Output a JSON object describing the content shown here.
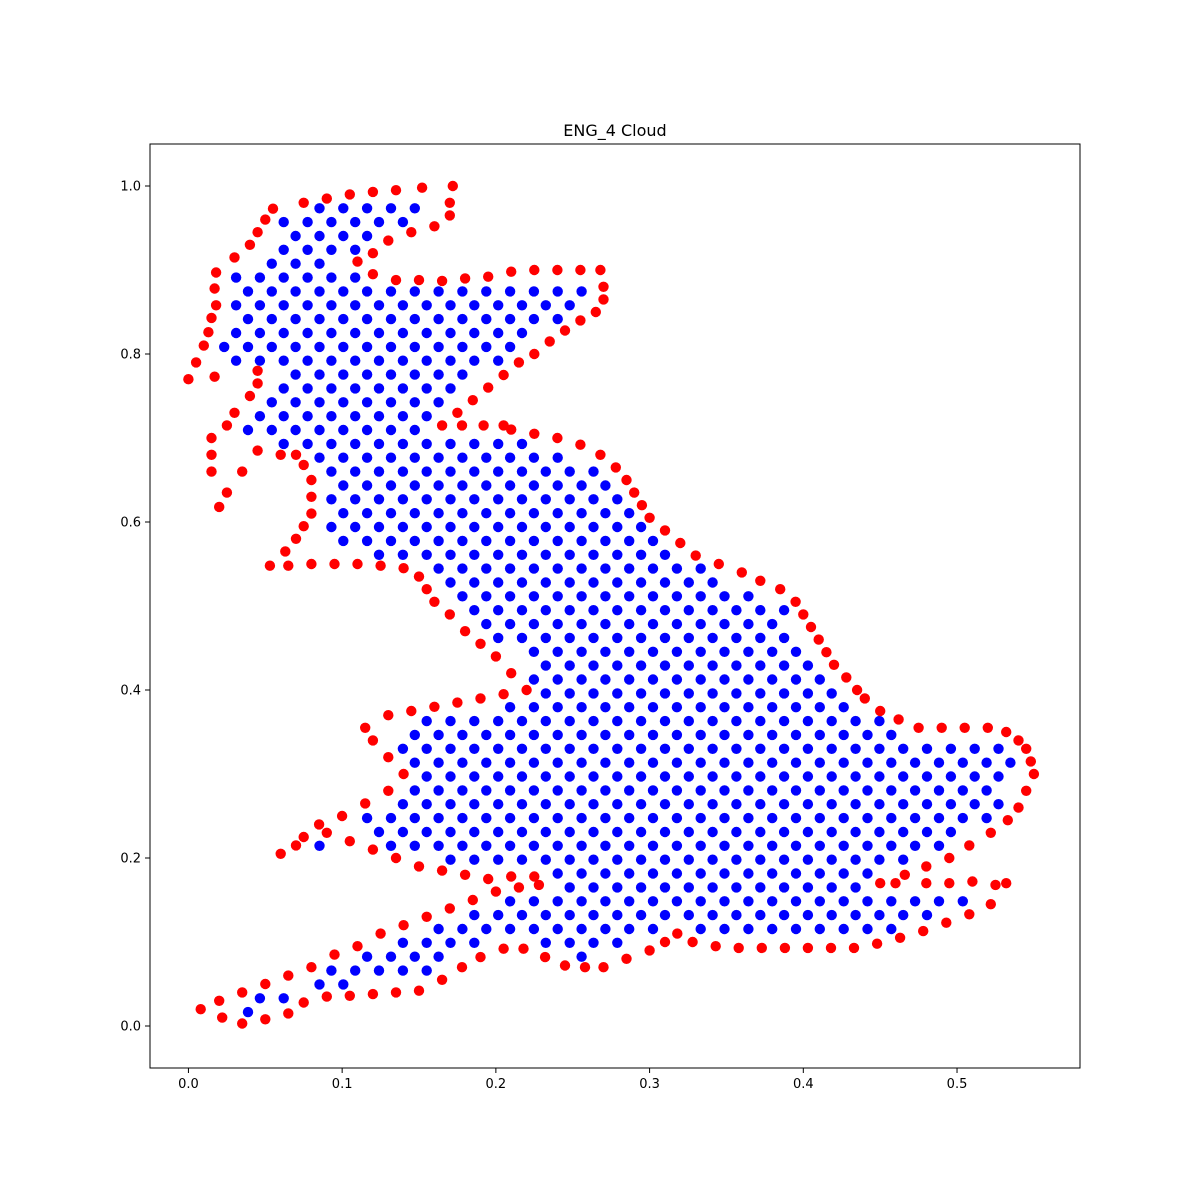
{
  "chart_data": {
    "type": "scatter",
    "title": "ENG_4 Cloud",
    "xlabel": "",
    "ylabel": "",
    "xlim": [
      -0.025,
      0.58
    ],
    "ylim": [
      -0.05,
      1.05
    ],
    "x_ticks": [
      0.0,
      0.1,
      0.2,
      0.3,
      0.4,
      0.5
    ],
    "x_tick_labels": [
      "0.0",
      "0.1",
      "0.2",
      "0.3",
      "0.4",
      "0.5"
    ],
    "y_ticks": [
      0.0,
      0.2,
      0.4,
      0.6,
      0.8,
      1.0
    ],
    "y_tick_labels": [
      "0.0",
      "0.2",
      "0.4",
      "0.6",
      "0.8",
      "1.0"
    ],
    "grid": false,
    "legend": "none",
    "colors": {
      "interior": "#0000ff",
      "boundary": "#ff0000"
    },
    "series": [
      {
        "color": "#ff0000",
        "points": [
          [
            0.0,
            0.77
          ],
          [
            0.005,
            0.79
          ],
          [
            0.01,
            0.81
          ],
          [
            0.013,
            0.826
          ],
          [
            0.015,
            0.843
          ],
          [
            0.018,
            0.858
          ],
          [
            0.018,
            0.897
          ],
          [
            0.017,
            0.878
          ],
          [
            0.017,
            0.773
          ],
          [
            0.03,
            0.915
          ],
          [
            0.04,
            0.93
          ],
          [
            0.045,
            0.945
          ],
          [
            0.05,
            0.96
          ],
          [
            0.055,
            0.973
          ],
          [
            0.075,
            0.98
          ],
          [
            0.09,
            0.985
          ],
          [
            0.105,
            0.99
          ],
          [
            0.12,
            0.993
          ],
          [
            0.135,
            0.995
          ],
          [
            0.152,
            0.998
          ],
          [
            0.172,
            1.0
          ],
          [
            0.17,
            0.98
          ],
          [
            0.17,
            0.965
          ],
          [
            0.16,
            0.952
          ],
          [
            0.145,
            0.945
          ],
          [
            0.13,
            0.935
          ],
          [
            0.12,
            0.92
          ],
          [
            0.11,
            0.91
          ],
          [
            0.12,
            0.895
          ],
          [
            0.135,
            0.888
          ],
          [
            0.15,
            0.888
          ],
          [
            0.165,
            0.887
          ],
          [
            0.18,
            0.89
          ],
          [
            0.195,
            0.892
          ],
          [
            0.21,
            0.898
          ],
          [
            0.225,
            0.9
          ],
          [
            0.24,
            0.9
          ],
          [
            0.255,
            0.9
          ],
          [
            0.268,
            0.9
          ],
          [
            0.27,
            0.88
          ],
          [
            0.27,
            0.865
          ],
          [
            0.265,
            0.85
          ],
          [
            0.255,
            0.84
          ],
          [
            0.245,
            0.828
          ],
          [
            0.235,
            0.815
          ],
          [
            0.225,
            0.8
          ],
          [
            0.215,
            0.79
          ],
          [
            0.205,
            0.775
          ],
          [
            0.195,
            0.76
          ],
          [
            0.185,
            0.745
          ],
          [
            0.175,
            0.73
          ],
          [
            0.165,
            0.715
          ],
          [
            0.178,
            0.715
          ],
          [
            0.192,
            0.715
          ],
          [
            0.205,
            0.715
          ],
          [
            0.21,
            0.71
          ],
          [
            0.225,
            0.705
          ],
          [
            0.24,
            0.7
          ],
          [
            0.255,
            0.692
          ],
          [
            0.268,
            0.68
          ],
          [
            0.278,
            0.665
          ],
          [
            0.285,
            0.65
          ],
          [
            0.29,
            0.635
          ],
          [
            0.295,
            0.62
          ],
          [
            0.3,
            0.605
          ],
          [
            0.31,
            0.59
          ],
          [
            0.32,
            0.575
          ],
          [
            0.33,
            0.56
          ],
          [
            0.345,
            0.55
          ],
          [
            0.36,
            0.54
          ],
          [
            0.372,
            0.53
          ],
          [
            0.385,
            0.52
          ],
          [
            0.395,
            0.505
          ],
          [
            0.4,
            0.49
          ],
          [
            0.405,
            0.475
          ],
          [
            0.41,
            0.46
          ],
          [
            0.415,
            0.445
          ],
          [
            0.42,
            0.43
          ],
          [
            0.428,
            0.415
          ],
          [
            0.435,
            0.4
          ],
          [
            0.44,
            0.39
          ],
          [
            0.45,
            0.375
          ],
          [
            0.462,
            0.365
          ],
          [
            0.475,
            0.355
          ],
          [
            0.49,
            0.355
          ],
          [
            0.505,
            0.355
          ],
          [
            0.52,
            0.355
          ],
          [
            0.532,
            0.35
          ],
          [
            0.54,
            0.34
          ],
          [
            0.545,
            0.33
          ],
          [
            0.548,
            0.315
          ],
          [
            0.55,
            0.3
          ],
          [
            0.545,
            0.28
          ],
          [
            0.54,
            0.26
          ],
          [
            0.533,
            0.245
          ],
          [
            0.522,
            0.23
          ],
          [
            0.508,
            0.215
          ],
          [
            0.495,
            0.2
          ],
          [
            0.48,
            0.19
          ],
          [
            0.466,
            0.18
          ],
          [
            0.45,
            0.17
          ],
          [
            0.46,
            0.17
          ],
          [
            0.48,
            0.17
          ],
          [
            0.495,
            0.17
          ],
          [
            0.51,
            0.172
          ],
          [
            0.525,
            0.168
          ],
          [
            0.532,
            0.17
          ],
          [
            0.522,
            0.145
          ],
          [
            0.508,
            0.133
          ],
          [
            0.493,
            0.123
          ],
          [
            0.478,
            0.113
          ],
          [
            0.463,
            0.105
          ],
          [
            0.448,
            0.098
          ],
          [
            0.433,
            0.093
          ],
          [
            0.418,
            0.093
          ],
          [
            0.403,
            0.093
          ],
          [
            0.388,
            0.093
          ],
          [
            0.373,
            0.093
          ],
          [
            0.358,
            0.093
          ],
          [
            0.343,
            0.095
          ],
          [
            0.328,
            0.1
          ],
          [
            0.318,
            0.11
          ],
          [
            0.31,
            0.1
          ],
          [
            0.3,
            0.09
          ],
          [
            0.285,
            0.08
          ],
          [
            0.27,
            0.07
          ],
          [
            0.258,
            0.07
          ],
          [
            0.245,
            0.072
          ],
          [
            0.232,
            0.082
          ],
          [
            0.218,
            0.092
          ],
          [
            0.205,
            0.092
          ],
          [
            0.19,
            0.082
          ],
          [
            0.178,
            0.07
          ],
          [
            0.165,
            0.055
          ],
          [
            0.15,
            0.042
          ],
          [
            0.135,
            0.04
          ],
          [
            0.12,
            0.038
          ],
          [
            0.105,
            0.036
          ],
          [
            0.09,
            0.035
          ],
          [
            0.075,
            0.028
          ],
          [
            0.065,
            0.015
          ],
          [
            0.05,
            0.008
          ],
          [
            0.035,
            0.003
          ],
          [
            0.022,
            0.01
          ],
          [
            0.008,
            0.02
          ],
          [
            0.02,
            0.03
          ],
          [
            0.035,
            0.04
          ],
          [
            0.05,
            0.05
          ],
          [
            0.065,
            0.06
          ],
          [
            0.08,
            0.07
          ],
          [
            0.095,
            0.085
          ],
          [
            0.11,
            0.095
          ],
          [
            0.125,
            0.11
          ],
          [
            0.14,
            0.12
          ],
          [
            0.155,
            0.13
          ],
          [
            0.17,
            0.14
          ],
          [
            0.185,
            0.15
          ],
          [
            0.2,
            0.16
          ],
          [
            0.215,
            0.165
          ],
          [
            0.228,
            0.168
          ],
          [
            0.225,
            0.178
          ],
          [
            0.21,
            0.178
          ],
          [
            0.195,
            0.175
          ],
          [
            0.18,
            0.18
          ],
          [
            0.165,
            0.185
          ],
          [
            0.15,
            0.19
          ],
          [
            0.135,
            0.2
          ],
          [
            0.12,
            0.21
          ],
          [
            0.105,
            0.22
          ],
          [
            0.09,
            0.23
          ],
          [
            0.075,
            0.225
          ],
          [
            0.06,
            0.205
          ],
          [
            0.07,
            0.215
          ],
          [
            0.085,
            0.24
          ],
          [
            0.1,
            0.25
          ],
          [
            0.115,
            0.265
          ],
          [
            0.13,
            0.28
          ],
          [
            0.14,
            0.3
          ],
          [
            0.13,
            0.32
          ],
          [
            0.12,
            0.34
          ],
          [
            0.115,
            0.355
          ],
          [
            0.13,
            0.37
          ],
          [
            0.145,
            0.375
          ],
          [
            0.16,
            0.38
          ],
          [
            0.175,
            0.385
          ],
          [
            0.19,
            0.39
          ],
          [
            0.205,
            0.395
          ],
          [
            0.22,
            0.4
          ],
          [
            0.21,
            0.42
          ],
          [
            0.2,
            0.44
          ],
          [
            0.19,
            0.455
          ],
          [
            0.18,
            0.47
          ],
          [
            0.17,
            0.49
          ],
          [
            0.16,
            0.505
          ],
          [
            0.155,
            0.52
          ],
          [
            0.15,
            0.535
          ],
          [
            0.14,
            0.545
          ],
          [
            0.125,
            0.548
          ],
          [
            0.11,
            0.55
          ],
          [
            0.095,
            0.55
          ],
          [
            0.08,
            0.55
          ],
          [
            0.065,
            0.548
          ],
          [
            0.053,
            0.548
          ],
          [
            0.063,
            0.565
          ],
          [
            0.07,
            0.58
          ],
          [
            0.075,
            0.595
          ],
          [
            0.08,
            0.61
          ],
          [
            0.08,
            0.63
          ],
          [
            0.08,
            0.65
          ],
          [
            0.075,
            0.668
          ],
          [
            0.07,
            0.68
          ],
          [
            0.06,
            0.68
          ],
          [
            0.045,
            0.685
          ],
          [
            0.035,
            0.66
          ],
          [
            0.02,
            0.618
          ],
          [
            0.025,
            0.635
          ],
          [
            0.015,
            0.66
          ],
          [
            0.015,
            0.68
          ],
          [
            0.015,
            0.7
          ],
          [
            0.025,
            0.715
          ],
          [
            0.03,
            0.73
          ],
          [
            0.04,
            0.75
          ],
          [
            0.045,
            0.765
          ],
          [
            0.045,
            0.78
          ]
        ]
      },
      {
        "color": "#0000ff",
        "fill_region": [
          [
            0.02,
            0.78
          ],
          [
            0.02,
            0.89
          ],
          [
            0.06,
            0.97
          ],
          [
            0.17,
            0.99
          ],
          [
            0.12,
            0.9
          ],
          [
            0.26,
            0.89
          ],
          [
            0.26,
            0.86
          ],
          [
            0.18,
            0.73
          ],
          [
            0.24,
            0.69
          ],
          [
            0.27,
            0.66
          ],
          [
            0.33,
            0.55
          ],
          [
            0.39,
            0.5
          ],
          [
            0.41,
            0.45
          ],
          [
            0.44,
            0.38
          ],
          [
            0.48,
            0.35
          ],
          [
            0.535,
            0.335
          ],
          [
            0.545,
            0.3
          ],
          [
            0.535,
            0.265
          ],
          [
            0.5,
            0.215
          ],
          [
            0.47,
            0.18
          ],
          [
            0.51,
            0.16
          ],
          [
            0.5,
            0.13
          ],
          [
            0.44,
            0.105
          ],
          [
            0.34,
            0.1
          ],
          [
            0.3,
            0.095
          ],
          [
            0.26,
            0.08
          ],
          [
            0.21,
            0.1
          ],
          [
            0.17,
            0.065
          ],
          [
            0.1,
            0.045
          ],
          [
            0.04,
            0.01
          ],
          [
            0.03,
            0.03
          ],
          [
            0.1,
            0.09
          ],
          [
            0.2,
            0.17
          ],
          [
            0.23,
            0.17
          ],
          [
            0.16,
            0.185
          ],
          [
            0.08,
            0.21
          ],
          [
            0.14,
            0.28
          ],
          [
            0.135,
            0.36
          ],
          [
            0.22,
            0.405
          ],
          [
            0.165,
            0.52
          ],
          [
            0.09,
            0.56
          ],
          [
            0.085,
            0.66
          ],
          [
            0.035,
            0.7
          ],
          [
            0.05,
            0.77
          ]
        ]
      }
    ]
  }
}
